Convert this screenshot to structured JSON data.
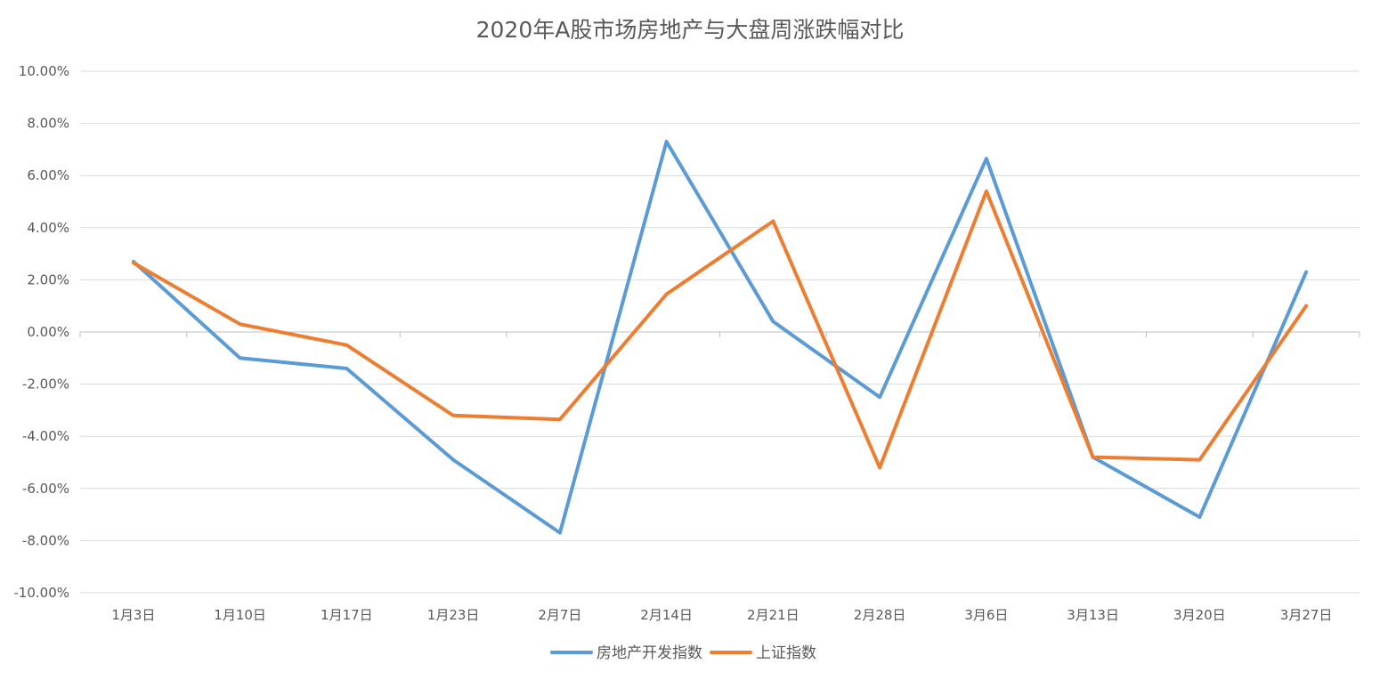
{
  "chart_data": {
    "type": "line",
    "title": "2020年A股市场房地产与大盘周涨跌幅对比",
    "xlabel": "",
    "ylabel": "",
    "categories": [
      "1月3日",
      "1月10日",
      "1月17日",
      "1月23日",
      "2月7日",
      "2月14日",
      "2月21日",
      "2月28日",
      "3月6日",
      "3月13日",
      "3月20日",
      "3月27日"
    ],
    "ylim": [
      -10,
      10
    ],
    "ytick_step": 2,
    "ytick_labels": [
      "10.00%",
      "8.00%",
      "6.00%",
      "4.00%",
      "2.00%",
      "0.00%",
      "-2.00%",
      "-4.00%",
      "-6.00%",
      "-8.00%",
      "-10.00%"
    ],
    "grid": true,
    "legend_position": "bottom",
    "series": [
      {
        "name": "房地产开发指数",
        "color": "#5B9BD5",
        "values": [
          2.7,
          -1.0,
          -1.4,
          -4.9,
          -7.7,
          7.3,
          0.4,
          -2.5,
          6.65,
          -4.8,
          -7.1,
          2.3
        ]
      },
      {
        "name": "上证指数",
        "color": "#ED7D31",
        "values": [
          2.65,
          0.3,
          -0.5,
          -3.2,
          -3.35,
          1.45,
          4.25,
          -5.2,
          5.4,
          -4.8,
          -4.9,
          1.0
        ]
      }
    ]
  }
}
